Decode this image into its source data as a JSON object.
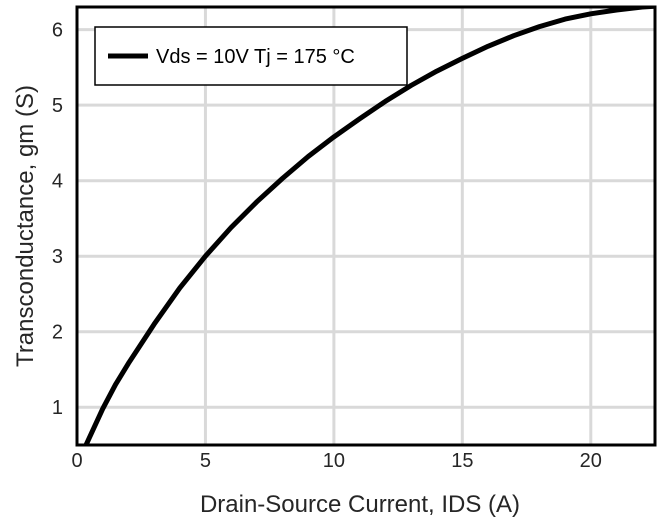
{
  "chart_data": {
    "type": "line",
    "title": "",
    "xlabel": "Drain-Source Current, IDS (A)",
    "ylabel": "Transconductance, gm (S)",
    "xlim": [
      0,
      22.5
    ],
    "ylim": [
      0.5,
      6.3
    ],
    "xticks": [
      0,
      5,
      10,
      15,
      20
    ],
    "yticks": [
      1,
      2,
      3,
      4,
      5,
      6
    ],
    "grid": true,
    "legend_position": "top-left",
    "series": [
      {
        "name": "Vds = 10V Tj = 175 °C",
        "color": "#000000",
        "x": [
          0.35,
          1.0,
          1.5,
          2.0,
          3.0,
          4.0,
          5.0,
          6.0,
          7.0,
          8.0,
          9.0,
          10.0,
          11.0,
          12.0,
          13.0,
          14.0,
          15.0,
          16.0,
          17.0,
          18.0,
          19.0,
          20.0,
          21.0,
          22.0,
          22.5
        ],
        "y": [
          0.5,
          0.98,
          1.3,
          1.58,
          2.1,
          2.58,
          3.0,
          3.38,
          3.72,
          4.03,
          4.32,
          4.58,
          4.82,
          5.05,
          5.26,
          5.45,
          5.62,
          5.78,
          5.92,
          6.04,
          6.14,
          6.21,
          6.26,
          6.3,
          6.31
        ]
      }
    ]
  }
}
